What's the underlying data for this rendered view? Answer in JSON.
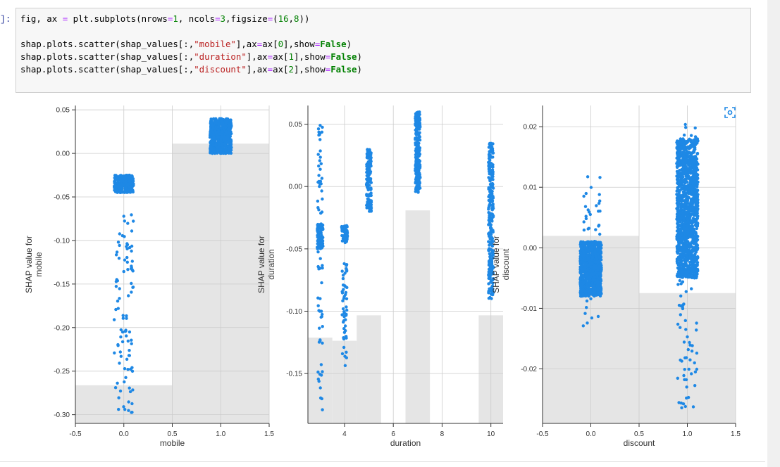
{
  "prompt": "]:",
  "code_lines": [
    [
      {
        "t": "fig, ax ",
        "c": ""
      },
      {
        "t": "=",
        "c": "tok-op"
      },
      {
        "t": " plt.subplots(nrows",
        "c": ""
      },
      {
        "t": "=",
        "c": "tok-op"
      },
      {
        "t": "1",
        "c": "tok-num"
      },
      {
        "t": ", ncols",
        "c": ""
      },
      {
        "t": "=",
        "c": "tok-op"
      },
      {
        "t": "3",
        "c": "tok-num"
      },
      {
        "t": ",figsize",
        "c": ""
      },
      {
        "t": "=",
        "c": "tok-op"
      },
      {
        "t": "(",
        "c": ""
      },
      {
        "t": "16",
        "c": "tok-num"
      },
      {
        "t": ",",
        "c": ""
      },
      {
        "t": "8",
        "c": "tok-num"
      },
      {
        "t": "))",
        "c": ""
      }
    ],
    [],
    [
      {
        "t": "shap.plots.scatter(shap_values[:,",
        "c": ""
      },
      {
        "t": "\"mobile\"",
        "c": "tok-str"
      },
      {
        "t": "],ax",
        "c": ""
      },
      {
        "t": "=",
        "c": "tok-op"
      },
      {
        "t": "ax[",
        "c": ""
      },
      {
        "t": "0",
        "c": "tok-num"
      },
      {
        "t": "],show",
        "c": ""
      },
      {
        "t": "=",
        "c": "tok-op"
      },
      {
        "t": "False",
        "c": "tok-kw"
      },
      {
        "t": ")",
        "c": ""
      }
    ],
    [
      {
        "t": "shap.plots.scatter(shap_values[:,",
        "c": ""
      },
      {
        "t": "\"duration\"",
        "c": "tok-str"
      },
      {
        "t": "],ax",
        "c": ""
      },
      {
        "t": "=",
        "c": "tok-op"
      },
      {
        "t": "ax[",
        "c": ""
      },
      {
        "t": "1",
        "c": "tok-num"
      },
      {
        "t": "],show",
        "c": ""
      },
      {
        "t": "=",
        "c": "tok-op"
      },
      {
        "t": "False",
        "c": "tok-kw"
      },
      {
        "t": ")",
        "c": ""
      }
    ],
    [
      {
        "t": "shap.plots.scatter(shap_values[:,",
        "c": ""
      },
      {
        "t": "\"discount\"",
        "c": "tok-str"
      },
      {
        "t": "],ax",
        "c": ""
      },
      {
        "t": "=",
        "c": "tok-op"
      },
      {
        "t": "ax[",
        "c": ""
      },
      {
        "t": "2",
        "c": "tok-num"
      },
      {
        "t": "],show",
        "c": ""
      },
      {
        "t": "=",
        "c": "tok-op"
      },
      {
        "t": "False",
        "c": "tok-kw"
      },
      {
        "t": ")",
        "c": ""
      }
    ]
  ],
  "expand_icon": "fullscreen-icon",
  "colors": {
    "dot": "#1e88e5",
    "hist": "#e5e5e5",
    "grid": "#cccccc",
    "axis": "#333333"
  },
  "chart_data": [
    {
      "type": "scatter",
      "xlabel": "mobile",
      "ylabel": "SHAP value for\nmobile",
      "xlim": [
        -0.5,
        1.5
      ],
      "ylim": [
        -0.31,
        0.055
      ],
      "xticks": [
        "-0.5",
        "0.0",
        "0.5",
        "1.0",
        "1.5"
      ],
      "yticks": [
        "0.05",
        "0.00",
        "-0.05",
        "-0.10",
        "-0.15",
        "-0.20",
        "-0.25",
        "-0.30"
      ],
      "grid": true,
      "histogram": [
        {
          "x0": -0.5,
          "x1": 0.5,
          "frac": 0.12
        },
        {
          "x0": 0.5,
          "x1": 1.5,
          "frac": 0.88
        }
      ],
      "clusters": [
        {
          "x": 0.0,
          "jitter": 0.1,
          "ymin": -0.045,
          "ymax": -0.025,
          "n": 260,
          "dense": true
        },
        {
          "x": 0.0,
          "jitter": 0.1,
          "ymin": -0.3,
          "ymax": -0.07,
          "n": 95,
          "dense": false
        },
        {
          "x": 1.0,
          "jitter": 0.11,
          "ymin": 0.0,
          "ymax": 0.04,
          "n": 700,
          "dense": true
        }
      ]
    },
    {
      "type": "scatter",
      "xlabel": "duration",
      "ylabel": "SHAP value for\nduration",
      "xlim": [
        2.5,
        10.5
      ],
      "ylim": [
        -0.19,
        0.065
      ],
      "xticks": [
        "4",
        "6",
        "8",
        "10"
      ],
      "yticks": [
        "0.05",
        "0.00",
        "-0.05",
        "-0.10",
        "-0.15"
      ],
      "grid": true,
      "histogram": [
        {
          "x0": 2.5,
          "x1": 3.5,
          "frac": 0.27
        },
        {
          "x0": 3.5,
          "x1": 4.5,
          "frac": 0.26
        },
        {
          "x0": 4.5,
          "x1": 5.5,
          "frac": 0.34
        },
        {
          "x0": 6.5,
          "x1": 7.5,
          "frac": 0.67
        },
        {
          "x0": 9.5,
          "x1": 10.5,
          "frac": 0.34
        }
      ],
      "clusters": [
        {
          "x": 3.0,
          "jitter": 0.12,
          "ymin": -0.05,
          "ymax": -0.03,
          "n": 90,
          "dense": true
        },
        {
          "x": 3.0,
          "jitter": 0.1,
          "ymin": -0.18,
          "ymax": 0.05,
          "n": 70,
          "dense": false
        },
        {
          "x": 4.0,
          "jitter": 0.12,
          "ymin": -0.045,
          "ymax": -0.03,
          "n": 60,
          "dense": true
        },
        {
          "x": 4.0,
          "jitter": 0.1,
          "ymin": -0.145,
          "ymax": -0.06,
          "n": 50,
          "dense": false
        },
        {
          "x": 5.0,
          "jitter": 0.1,
          "ymin": -0.02,
          "ymax": 0.03,
          "n": 150,
          "dense": true
        },
        {
          "x": 7.0,
          "jitter": 0.1,
          "ymin": -0.005,
          "ymax": 0.06,
          "n": 250,
          "dense": true
        },
        {
          "x": 10.0,
          "jitter": 0.1,
          "ymin": -0.09,
          "ymax": 0.035,
          "n": 260,
          "dense": true
        }
      ]
    },
    {
      "type": "scatter",
      "xlabel": "discount",
      "ylabel": "SHAP value for\ndiscount",
      "xlim": [
        -0.5,
        1.5
      ],
      "ylim": [
        -0.029,
        0.0235
      ],
      "xticks": [
        "-0.5",
        "0.0",
        "0.5",
        "1.0",
        "1.5"
      ],
      "yticks": [
        "0.02",
        "0.01",
        "0.00",
        "-0.01",
        "-0.02"
      ],
      "grid": true,
      "histogram": [
        {
          "x0": -0.5,
          "x1": 0.5,
          "frac": 0.59
        },
        {
          "x0": 0.5,
          "x1": 1.5,
          "frac": 0.41
        }
      ],
      "clusters": [
        {
          "x": 0.0,
          "jitter": 0.11,
          "ymin": -0.008,
          "ymax": 0.001,
          "n": 900,
          "dense": true
        },
        {
          "x": 0.0,
          "jitter": 0.1,
          "ymin": -0.013,
          "ymax": 0.012,
          "n": 60,
          "dense": false
        },
        {
          "x": 1.0,
          "jitter": 0.11,
          "ymin": -0.005,
          "ymax": 0.018,
          "n": 1300,
          "dense": true
        },
        {
          "x": 1.0,
          "jitter": 0.1,
          "ymin": -0.027,
          "ymax": 0.021,
          "n": 110,
          "dense": false
        }
      ]
    }
  ]
}
